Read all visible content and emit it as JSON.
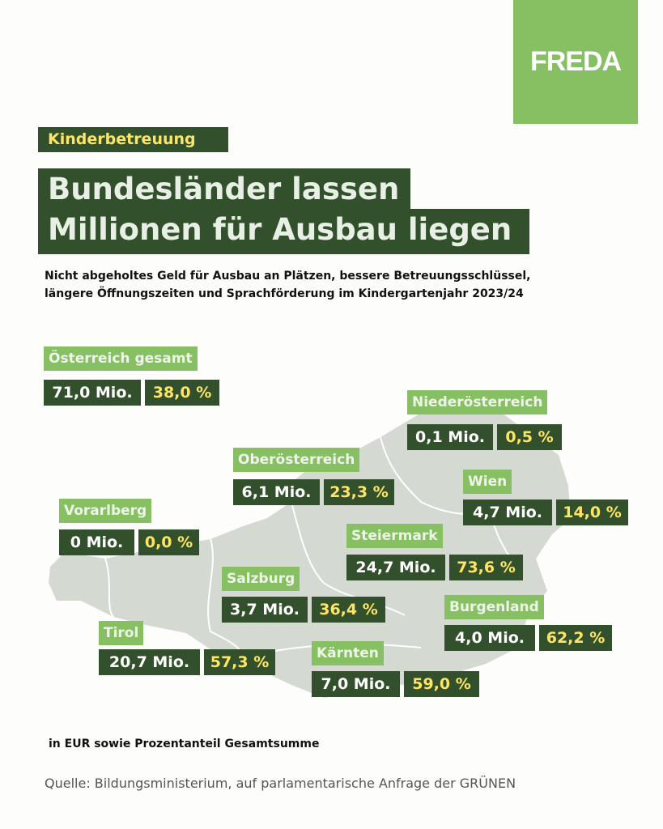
{
  "logo": "FREDA",
  "tag": "Kinderbetreuung",
  "title": [
    "Bundesländer lassen",
    "Millionen für Ausbau liegen"
  ],
  "subtitle": [
    "Nicht abgeholtes Geld für Ausbau an Plätzen, bessere Betreuungsschlüssel,",
    "längere Öffnungszeiten und Sprachförderung im Kindergartenjahr 2023/24"
  ],
  "colors": {
    "dark_green": "#33502c",
    "light_green": "#86c063",
    "yellow": "#ffe566",
    "map": "#d4dad1"
  },
  "regions": [
    {
      "name": "Österreich gesamt",
      "mio": "71,0 Mio.",
      "pct": "38,0 %"
    },
    {
      "name": "Niederösterreich",
      "mio": "0,1 Mio.",
      "pct": "0,5 %"
    },
    {
      "name": "Oberösterreich",
      "mio": "6,1 Mio.",
      "pct": "23,3 %"
    },
    {
      "name": "Wien",
      "mio": "4,7 Mio.",
      "pct": "14,0 %"
    },
    {
      "name": "Vorarlberg",
      "mio": "0 Mio.",
      "pct": "0,0 %"
    },
    {
      "name": "Steiermark",
      "mio": "24,7 Mio.",
      "pct": "73,6 %"
    },
    {
      "name": "Salzburg",
      "mio": "3,7 Mio.",
      "pct": "36,4 %"
    },
    {
      "name": "Burgenland",
      "mio": "4,0 Mio.",
      "pct": "62,2 %"
    },
    {
      "name": "Tirol",
      "mio": "20,7 Mio.",
      "pct": "57,3 %"
    },
    {
      "name": "Kärnten",
      "mio": "7,0 Mio.",
      "pct": "59,0 %"
    }
  ],
  "note": "in EUR sowie Prozentanteil Gesamtsumme",
  "source": "Quelle: Bildungsministerium, auf parlamentarische Anfrage der GRÜNEN"
}
